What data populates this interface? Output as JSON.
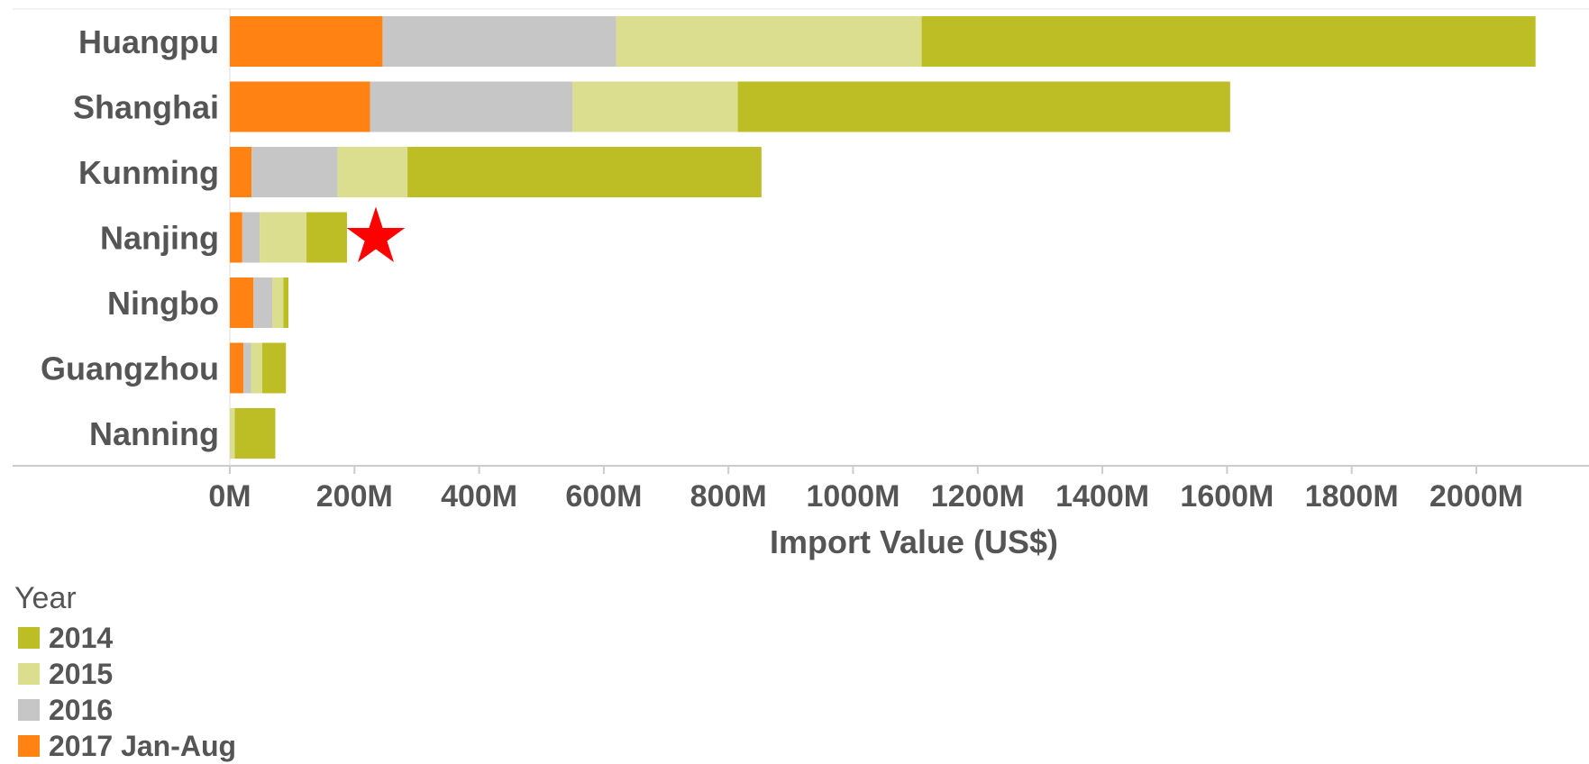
{
  "chart_data": {
    "type": "bar",
    "orientation": "horizontal",
    "stacked": true,
    "categories": [
      "Huangpu",
      "Shanghai",
      "Kunming",
      "Nanjing",
      "Ningbo",
      "Guangzhou",
      "Nanning"
    ],
    "series": [
      {
        "name": "2017 Jan-Aug",
        "color": "#FF8213",
        "values": [
          245,
          225,
          35,
          20,
          38,
          22,
          0
        ]
      },
      {
        "name": "2016",
        "color": "#C6C6C6",
        "values": [
          375,
          325,
          138,
          28,
          30,
          12,
          0
        ]
      },
      {
        "name": "2015",
        "color": "#DBDD8F",
        "values": [
          490,
          265,
          112,
          75,
          18,
          18,
          8
        ]
      },
      {
        "name": "2014",
        "color": "#BDBE25",
        "values": [
          985,
          790,
          568,
          65,
          8,
          38,
          65
        ]
      }
    ],
    "xlabel": "Import Value (US$)",
    "xlim": [
      0,
      2100
    ],
    "xticks": [
      0,
      200,
      400,
      600,
      800,
      1000,
      1200,
      1400,
      1600,
      1800,
      2000
    ],
    "xtick_labels": [
      "0M",
      "200M",
      "400M",
      "600M",
      "800M",
      "1000M",
      "1200M",
      "1400M",
      "1600M",
      "1800M",
      "2000M"
    ],
    "annotations": [
      {
        "type": "star",
        "category": "Nanjing",
        "color": "#FF0000"
      }
    ],
    "legend": {
      "title": "Year",
      "position": "bottom-left",
      "entries": [
        "2014",
        "2015",
        "2016",
        "2017 Jan-Aug"
      ]
    }
  }
}
